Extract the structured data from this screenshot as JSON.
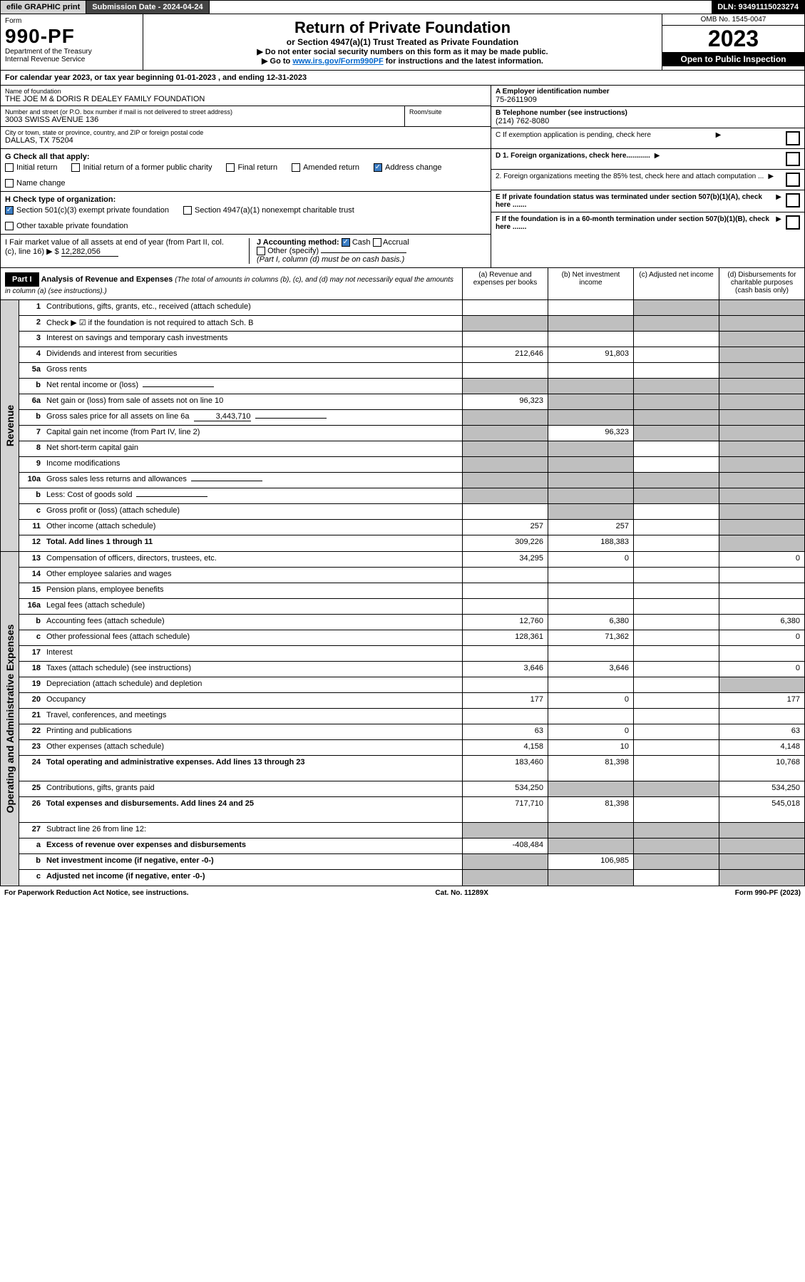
{
  "topbar": {
    "efile": "efile GRAPHIC print",
    "subdate": "Submission Date - 2024-04-24",
    "dln": "DLN: 93491115023274"
  },
  "header": {
    "form_word": "Form",
    "form_no": "990-PF",
    "dept1": "Department of the Treasury",
    "dept2": "Internal Revenue Service",
    "title": "Return of Private Foundation",
    "subtitle": "or Section 4947(a)(1) Trust Treated as Private Foundation",
    "note1": "▶ Do not enter social security numbers on this form as it may be made public.",
    "note2_pre": "▶ Go to ",
    "note2_link": "www.irs.gov/Form990PF",
    "note2_post": " for instructions and the latest information.",
    "omb": "OMB No. 1545-0047",
    "year": "2023",
    "open": "Open to Public Inspection"
  },
  "calyear": "For calendar year 2023, or tax year beginning 01-01-2023                          , and ending 12-31-2023",
  "name": {
    "label": "Name of foundation",
    "val": "THE JOE M & DORIS R DEALEY FAMILY FOUNDATION"
  },
  "address": {
    "label": "Number and street (or P.O. box number if mail is not delivered to street address)",
    "val": "3003 SWISS AVENUE 136",
    "room_label": "Room/suite"
  },
  "city": {
    "label": "City or town, state or province, country, and ZIP or foreign postal code",
    "val": "DALLAS, TX  75204"
  },
  "ein": {
    "label": "A Employer identification number",
    "val": "75-2611909"
  },
  "phone": {
    "label": "B Telephone number (see instructions)",
    "val": "(214) 762-8080"
  },
  "c_label": "C If exemption application is pending, check here",
  "d1_label": "D 1. Foreign organizations, check here............",
  "d2_label": "2. Foreign organizations meeting the 85% test, check here and attach computation ...",
  "e_label": "E  If private foundation status was terminated under section 507(b)(1)(A), check here .......",
  "f_label": "F  If the foundation is in a 60-month termination under section 507(b)(1)(B), check here .......",
  "g": {
    "label": "G Check all that apply:",
    "opts": [
      "Initial return",
      "Initial return of a former public charity",
      "Final return",
      "Amended return",
      "Address change",
      "Name change"
    ],
    "checked_idx": 4
  },
  "h": {
    "label": "H Check type of organization:",
    "opts": [
      "Section 501(c)(3) exempt private foundation",
      "Section 4947(a)(1) nonexempt charitable trust",
      "Other taxable private foundation"
    ],
    "checked_idx": 0
  },
  "i": {
    "label": "I Fair market value of all assets at end of year (from Part II, col. (c), line 16)",
    "val": "12,282,056",
    "j_label": "J Accounting method:",
    "j_opts": [
      "Cash",
      "Accrual"
    ],
    "j_checked": 0,
    "j_other": "Other (specify)",
    "j_note": "(Part I, column (d) must be on cash basis.)"
  },
  "part1": {
    "badge": "Part I",
    "title": "Analysis of Revenue and Expenses",
    "title_note": "(The total of amounts in columns (b), (c), and (d) may not necessarily equal the amounts in column (a) (see instructions).)",
    "cols": [
      "(a)   Revenue and expenses per books",
      "(b)   Net investment income",
      "(c)   Adjusted net income",
      "(d)   Disbursements for charitable purposes (cash basis only)"
    ]
  },
  "revenue_label": "Revenue",
  "expenses_label": "Operating and Administrative Expenses",
  "rows": [
    {
      "n": "1",
      "d": "Contributions, gifts, grants, etc., received (attach schedule)",
      "a": "",
      "b": "",
      "c": "",
      "e": "",
      "shade_cde": true
    },
    {
      "n": "2",
      "d": "Check ▶ ☑ if the foundation is not required to attach Sch. B",
      "a": "",
      "b": "",
      "c": "",
      "e": "",
      "shade_all": true,
      "bold_not": true
    },
    {
      "n": "3",
      "d": "Interest on savings and temporary cash investments",
      "a": "",
      "b": "",
      "c": "",
      "e": "",
      "shade_e": true
    },
    {
      "n": "4",
      "d": "Dividends and interest from securities",
      "a": "212,646",
      "b": "91,803",
      "c": "",
      "e": "",
      "shade_e": true
    },
    {
      "n": "5a",
      "d": "Gross rents",
      "a": "",
      "b": "",
      "c": "",
      "e": "",
      "shade_e": true
    },
    {
      "n": "b",
      "d": "Net rental income or (loss)",
      "a": "",
      "b": "",
      "c": "",
      "e": "",
      "shade_all": true,
      "underline": true
    },
    {
      "n": "6a",
      "d": "Net gain or (loss) from sale of assets not on line 10",
      "a": "96,323",
      "b": "",
      "c": "",
      "e": "",
      "shade_bcde": true
    },
    {
      "n": "b",
      "d": "Gross sales price for all assets on line 6a",
      "extra": "3,443,710",
      "a": "",
      "b": "",
      "c": "",
      "e": "",
      "shade_all": true,
      "underline": true
    },
    {
      "n": "7",
      "d": "Capital gain net income (from Part IV, line 2)",
      "a": "",
      "b": "96,323",
      "c": "",
      "e": "",
      "shade_a": true,
      "shade_cde": true
    },
    {
      "n": "8",
      "d": "Net short-term capital gain",
      "a": "",
      "b": "",
      "c": "",
      "e": "",
      "shade_ab": true,
      "shade_e": true
    },
    {
      "n": "9",
      "d": "Income modifications",
      "a": "",
      "b": "",
      "c": "",
      "e": "",
      "shade_ab": true,
      "shade_e": true
    },
    {
      "n": "10a",
      "d": "Gross sales less returns and allowances",
      "a": "",
      "b": "",
      "c": "",
      "e": "",
      "shade_all": true,
      "underline": true
    },
    {
      "n": "b",
      "d": "Less: Cost of goods sold",
      "a": "",
      "b": "",
      "c": "",
      "e": "",
      "shade_all": true,
      "underline": true
    },
    {
      "n": "c",
      "d": "Gross profit or (loss) (attach schedule)",
      "a": "",
      "b": "",
      "c": "",
      "e": "",
      "shade_b": true,
      "shade_e": true
    },
    {
      "n": "11",
      "d": "Other income (attach schedule)",
      "a": "257",
      "b": "257",
      "c": "",
      "e": "",
      "shade_e": true
    },
    {
      "n": "12",
      "d": "Total. Add lines 1 through 11",
      "a": "309,226",
      "b": "188,383",
      "c": "",
      "e": "",
      "shade_e": true,
      "bold": true
    }
  ],
  "erows": [
    {
      "n": "13",
      "d": "Compensation of officers, directors, trustees, etc.",
      "a": "34,295",
      "b": "0",
      "c": "",
      "e": "0"
    },
    {
      "n": "14",
      "d": "Other employee salaries and wages",
      "a": "",
      "b": "",
      "c": "",
      "e": ""
    },
    {
      "n": "15",
      "d": "Pension plans, employee benefits",
      "a": "",
      "b": "",
      "c": "",
      "e": ""
    },
    {
      "n": "16a",
      "d": "Legal fees (attach schedule)",
      "a": "",
      "b": "",
      "c": "",
      "e": ""
    },
    {
      "n": "b",
      "d": "Accounting fees (attach schedule)",
      "a": "12,760",
      "b": "6,380",
      "c": "",
      "e": "6,380"
    },
    {
      "n": "c",
      "d": "Other professional fees (attach schedule)",
      "a": "128,361",
      "b": "71,362",
      "c": "",
      "e": "0"
    },
    {
      "n": "17",
      "d": "Interest",
      "a": "",
      "b": "",
      "c": "",
      "e": ""
    },
    {
      "n": "18",
      "d": "Taxes (attach schedule) (see instructions)",
      "a": "3,646",
      "b": "3,646",
      "c": "",
      "e": "0"
    },
    {
      "n": "19",
      "d": "Depreciation (attach schedule) and depletion",
      "a": "",
      "b": "",
      "c": "",
      "e": "",
      "shade_e": true
    },
    {
      "n": "20",
      "d": "Occupancy",
      "a": "177",
      "b": "0",
      "c": "",
      "e": "177"
    },
    {
      "n": "21",
      "d": "Travel, conferences, and meetings",
      "a": "",
      "b": "",
      "c": "",
      "e": ""
    },
    {
      "n": "22",
      "d": "Printing and publications",
      "a": "63",
      "b": "0",
      "c": "",
      "e": "63"
    },
    {
      "n": "23",
      "d": "Other expenses (attach schedule)",
      "a": "4,158",
      "b": "10",
      "c": "",
      "e": "4,148"
    },
    {
      "n": "24",
      "d": "Total operating and administrative expenses. Add lines 13 through 23",
      "a": "183,460",
      "b": "81,398",
      "c": "",
      "e": "10,768",
      "bold": true,
      "tall": true
    },
    {
      "n": "25",
      "d": "Contributions, gifts, grants paid",
      "a": "534,250",
      "b": "",
      "c": "",
      "e": "534,250",
      "shade_bc": true
    },
    {
      "n": "26",
      "d": "Total expenses and disbursements. Add lines 24 and 25",
      "a": "717,710",
      "b": "81,398",
      "c": "",
      "e": "545,018",
      "bold": true,
      "tall": true
    },
    {
      "n": "27",
      "d": "Subtract line 26 from line 12:",
      "a": "",
      "b": "",
      "c": "",
      "e": "",
      "shade_all": true
    },
    {
      "n": "a",
      "d": "Excess of revenue over expenses and disbursements",
      "a": "-408,484",
      "b": "",
      "c": "",
      "e": "",
      "bold": true,
      "shade_bcde": true
    },
    {
      "n": "b",
      "d": "Net investment income (if negative, enter -0-)",
      "a": "",
      "b": "106,985",
      "c": "",
      "e": "",
      "bold": true,
      "shade_a": true,
      "shade_cde": true
    },
    {
      "n": "c",
      "d": "Adjusted net income (if negative, enter -0-)",
      "a": "",
      "b": "",
      "c": "",
      "e": "",
      "bold": true,
      "shade_ab": true,
      "shade_e": true
    }
  ],
  "footer": {
    "left": "For Paperwork Reduction Act Notice, see instructions.",
    "mid": "Cat. No. 11289X",
    "right": "Form 990-PF (2023)"
  }
}
